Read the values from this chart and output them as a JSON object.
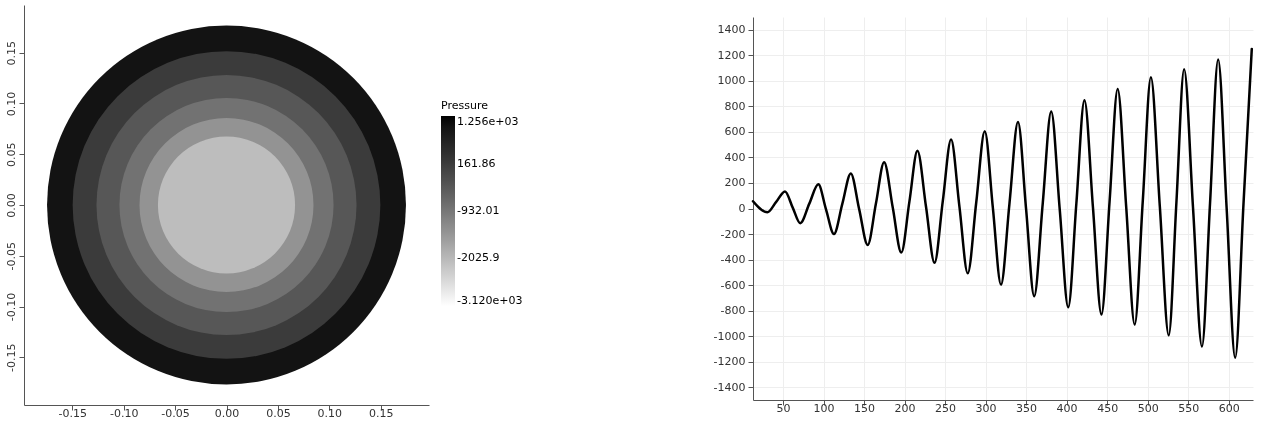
{
  "chart_data": [
    {
      "type": "bubble",
      "x": [
        0,
        0,
        0,
        0,
        0,
        0
      ],
      "values": [
        0,
        0,
        0,
        0,
        0,
        0
      ],
      "sizes": [
        1,
        0.735,
        0.525,
        0.356,
        0.235,
        0.146
      ],
      "cvalues": [
        1000,
        160,
        -360,
        -840,
        -1410,
        -2100
      ],
      "clabel": "Pressure",
      "clim": [
        -3120,
        1256
      ],
      "cticks": [
        {
          "value": 1256,
          "label": "1.256e+03"
        },
        161.86,
        -932.01,
        -2025.9,
        {
          "value": -3120,
          "label": "-3.120e+03"
        }
      ],
      "xlim": [
        -0.197,
        0.197
      ],
      "ylim": [
        -0.197,
        0.197
      ],
      "xticks": [
        -0.15,
        {
          "value": -0.1,
          "label": "-0.10"
        },
        -0.05,
        {
          "value": 0,
          "label": "0.00"
        },
        0.05,
        {
          "value": 0.1,
          "label": "0.10"
        },
        0.15
      ],
      "yticks": [
        -0.15,
        {
          "value": -0.1,
          "label": "-0.10"
        },
        -0.05,
        {
          "value": 0,
          "label": "0.00"
        },
        0.05,
        {
          "value": 0.1,
          "label": "0.10"
        },
        0.15
      ]
    },
    {
      "type": "line",
      "color": "#000000",
      "grid": true,
      "x": [
        13,
        30.7,
        41.6,
        52.5,
        62,
        71.3,
        82.5,
        93.6,
        103,
        112.9,
        123.3,
        133.7,
        144,
        154.5,
        164.7,
        174.8,
        185.4,
        196,
        206,
        215.9,
        226.5,
        237,
        247.2,
        257.4,
        267.7,
        278,
        288.5,
        299,
        309,
        319,
        329.5,
        340,
        350,
        360,
        370.5,
        381,
        391.5,
        402,
        412,
        422,
        432.5,
        443,
        453,
        463,
        473.5,
        484,
        494,
        504,
        515,
        526,
        535.5,
        545,
        556,
        567,
        577,
        587,
        597.5,
        608,
        618.3,
        628.5
      ],
      "values": [
        57,
        -30,
        52,
        134,
        7,
        -115,
        38,
        190,
        -5,
        -200,
        38,
        275,
        -5,
        -285,
        39,
        363,
        9,
        -345,
        54,
        452,
        14,
        -425,
        58,
        540,
        16,
        -508,
        49,
        606,
        5,
        -596,
        41,
        678,
        -5,
        -687,
        37,
        760,
        -7,
        -774,
        37,
        848,
        9,
        -831,
        53,
        937,
        14,
        -909,
        60,
        1028,
        18,
        -993,
        49,
        1091,
        5,
        -1081,
        43,
        1167,
        -1,
        -1169,
        40,
        1250
      ],
      "xlim": [
        13,
        630
      ],
      "ylim": [
        -1500,
        1500
      ],
      "xticks": [
        50,
        100,
        150,
        200,
        250,
        300,
        350,
        400,
        450,
        500,
        550,
        600
      ],
      "yticks": [
        -1400,
        -1200,
        -1000,
        -800,
        -600,
        -400,
        -200,
        0,
        200,
        400,
        600,
        800,
        1000,
        1200,
        1400
      ]
    }
  ]
}
